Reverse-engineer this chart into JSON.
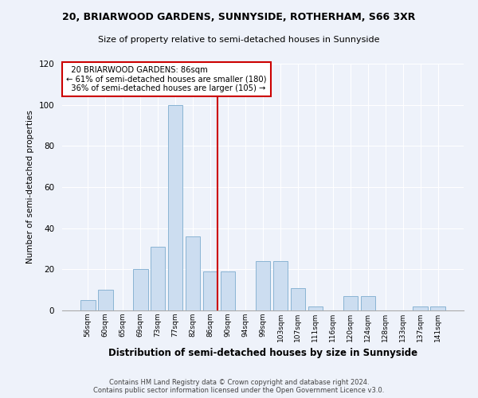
{
  "title": "20, BRIARWOOD GARDENS, SUNNYSIDE, ROTHERHAM, S66 3XR",
  "subtitle": "Size of property relative to semi-detached houses in Sunnyside",
  "xlabel": "Distribution of semi-detached houses by size in Sunnyside",
  "ylabel": "Number of semi-detached properties",
  "bin_labels": [
    "56sqm",
    "60sqm",
    "65sqm",
    "69sqm",
    "73sqm",
    "77sqm",
    "82sqm",
    "86sqm",
    "90sqm",
    "94sqm",
    "99sqm",
    "103sqm",
    "107sqm",
    "111sqm",
    "116sqm",
    "120sqm",
    "124sqm",
    "128sqm",
    "133sqm",
    "137sqm",
    "141sqm"
  ],
  "bar_values": [
    5,
    10,
    0,
    20,
    31,
    100,
    36,
    19,
    19,
    0,
    24,
    24,
    11,
    2,
    0,
    7,
    7,
    0,
    0,
    2,
    2
  ],
  "bar_color": "#ccddf0",
  "bar_edge_color": "#8ab4d4",
  "property_size_label": "86sqm",
  "property_label": "20 BRIARWOOD GARDENS: 86sqm",
  "pct_smaller": 61,
  "count_smaller": 180,
  "pct_larger": 36,
  "count_larger": 105,
  "vline_color": "#cc0000",
  "annotation_box_color": "#cc0000",
  "ylim": [
    0,
    120
  ],
  "yticks": [
    0,
    20,
    40,
    60,
    80,
    100,
    120
  ],
  "background_color": "#eef2fa",
  "grid_color": "#ffffff",
  "footer_line1": "Contains HM Land Registry data © Crown copyright and database right 2024.",
  "footer_line2": "Contains public sector information licensed under the Open Government Licence v3.0."
}
